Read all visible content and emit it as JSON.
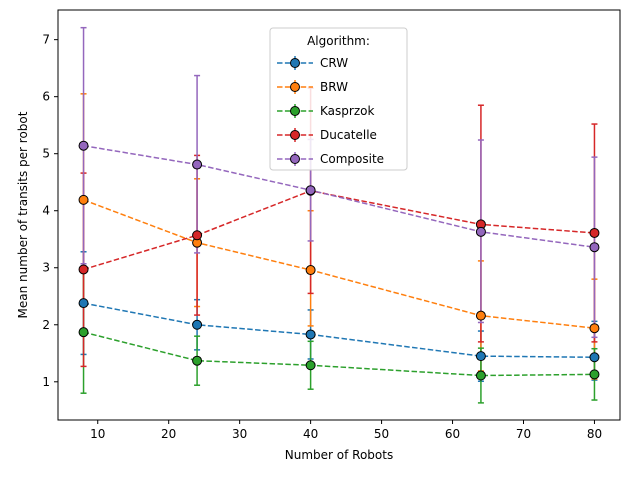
{
  "chart_data": {
    "type": "line",
    "title": "",
    "xlabel": "Number of Robots",
    "ylabel": "Mean number of transits per robot",
    "xlim": [
      4.4,
      83.6
    ],
    "ylim": [
      0.33,
      7.52
    ],
    "xticks": [
      10,
      20,
      30,
      40,
      50,
      60,
      70,
      80
    ],
    "yticks": [
      1,
      2,
      3,
      4,
      5,
      6,
      7
    ],
    "x": [
      8,
      24,
      40,
      64,
      80
    ],
    "grid": false,
    "legend": {
      "title": "Algorithm:",
      "placement": "top-center"
    },
    "series": [
      {
        "name": "CRW",
        "color": "#1f77b4",
        "values": [
          2.38,
          2.0,
          1.83,
          1.45,
          1.43
        ],
        "err_low": [
          1.48,
          1.56,
          1.4,
          1.01,
          1.03
        ],
        "err_high": [
          3.28,
          2.44,
          2.26,
          1.89,
          2.06
        ]
      },
      {
        "name": "BRW",
        "color": "#ff7f0e",
        "values": [
          4.19,
          3.44,
          2.96,
          2.16,
          1.94
        ],
        "err_low": [
          2.32,
          2.32,
          1.98,
          1.19,
          1.05
        ],
        "err_high": [
          6.05,
          4.56,
          4.0,
          3.12,
          2.8
        ]
      },
      {
        "name": "Kasprzok",
        "color": "#2ca02c",
        "values": [
          1.87,
          1.37,
          1.29,
          1.11,
          1.13
        ],
        "err_low": [
          0.8,
          0.94,
          0.87,
          0.63,
          0.68
        ],
        "err_high": [
          2.93,
          1.8,
          1.71,
          1.59,
          1.58
        ]
      },
      {
        "name": "Ducatelle",
        "color": "#d62728",
        "values": [
          2.97,
          3.57,
          4.35,
          3.76,
          3.61
        ],
        "err_low": [
          1.27,
          2.17,
          2.55,
          1.7,
          1.7
        ],
        "err_high": [
          4.66,
          4.97,
          6.15,
          5.85,
          5.52
        ]
      },
      {
        "name": "Composite",
        "color": "#9467bd",
        "values": [
          5.14,
          4.81,
          4.36,
          3.63,
          3.36
        ],
        "err_low": [
          3.07,
          3.26,
          3.47,
          2.04,
          1.78
        ],
        "err_high": [
          7.21,
          6.37,
          5.25,
          5.24,
          4.94
        ]
      }
    ]
  }
}
